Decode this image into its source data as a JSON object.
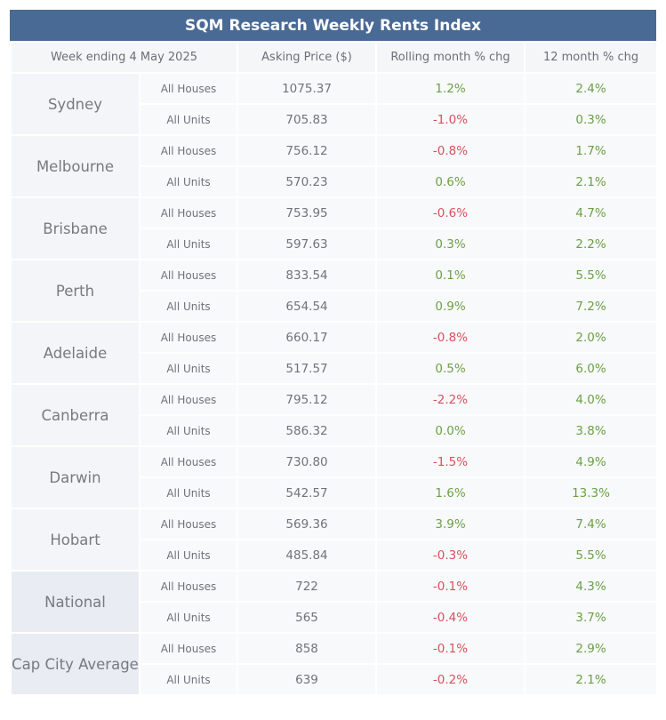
{
  "title": "SQM Research Weekly Rents Index",
  "headers": {
    "week": "Week ending 4 May 2025",
    "price": "Asking Price ($)",
    "rolling": "Rolling month % chg",
    "annual": "12 month % chg"
  },
  "colors": {
    "title_bg": "#4a6a96",
    "positive": "#6ca044",
    "negative": "#d8505a"
  },
  "cities": [
    {
      "name": "Sydney",
      "average": false,
      "rows": [
        {
          "type": "All Houses",
          "price": "1075.37",
          "rolling": "1.2%",
          "annual": "2.4%"
        },
        {
          "type": "All Units",
          "price": "705.83",
          "rolling": "-1.0%",
          "annual": "0.3%"
        }
      ]
    },
    {
      "name": "Melbourne",
      "average": false,
      "rows": [
        {
          "type": "All Houses",
          "price": "756.12",
          "rolling": "-0.8%",
          "annual": "1.7%"
        },
        {
          "type": "All Units",
          "price": "570.23",
          "rolling": "0.6%",
          "annual": "2.1%"
        }
      ]
    },
    {
      "name": "Brisbane",
      "average": false,
      "rows": [
        {
          "type": "All Houses",
          "price": "753.95",
          "rolling": "-0.6%",
          "annual": "4.7%"
        },
        {
          "type": "All Units",
          "price": "597.63",
          "rolling": "0.3%",
          "annual": "2.2%"
        }
      ]
    },
    {
      "name": "Perth",
      "average": false,
      "rows": [
        {
          "type": "All Houses",
          "price": "833.54",
          "rolling": "0.1%",
          "annual": "5.5%"
        },
        {
          "type": "All Units",
          "price": "654.54",
          "rolling": "0.9%",
          "annual": "7.2%"
        }
      ]
    },
    {
      "name": "Adelaide",
      "average": false,
      "rows": [
        {
          "type": "All Houses",
          "price": "660.17",
          "rolling": "-0.8%",
          "annual": "2.0%"
        },
        {
          "type": "All Units",
          "price": "517.57",
          "rolling": "0.5%",
          "annual": "6.0%"
        }
      ]
    },
    {
      "name": "Canberra",
      "average": false,
      "rows": [
        {
          "type": "All Houses",
          "price": "795.12",
          "rolling": "-2.2%",
          "annual": "4.0%"
        },
        {
          "type": "All Units",
          "price": "586.32",
          "rolling": "0.0%",
          "annual": "3.8%"
        }
      ]
    },
    {
      "name": "Darwin",
      "average": false,
      "rows": [
        {
          "type": "All Houses",
          "price": "730.80",
          "rolling": "-1.5%",
          "annual": "4.9%"
        },
        {
          "type": "All Units",
          "price": "542.57",
          "rolling": "1.6%",
          "annual": "13.3%"
        }
      ]
    },
    {
      "name": "Hobart",
      "average": false,
      "rows": [
        {
          "type": "All Houses",
          "price": "569.36",
          "rolling": "3.9%",
          "annual": "7.4%"
        },
        {
          "type": "All Units",
          "price": "485.84",
          "rolling": "-0.3%",
          "annual": "5.5%"
        }
      ]
    },
    {
      "name": "National",
      "average": true,
      "rows": [
        {
          "type": "All Houses",
          "price": "722",
          "rolling": "-0.1%",
          "annual": "4.3%"
        },
        {
          "type": "All Units",
          "price": "565",
          "rolling": "-0.4%",
          "annual": "3.7%"
        }
      ]
    },
    {
      "name": "Cap City Average",
      "average": true,
      "rows": [
        {
          "type": "All Houses",
          "price": "858",
          "rolling": "-0.1%",
          "annual": "2.9%"
        },
        {
          "type": "All Units",
          "price": "639",
          "rolling": "-0.2%",
          "annual": "2.1%"
        }
      ]
    }
  ]
}
